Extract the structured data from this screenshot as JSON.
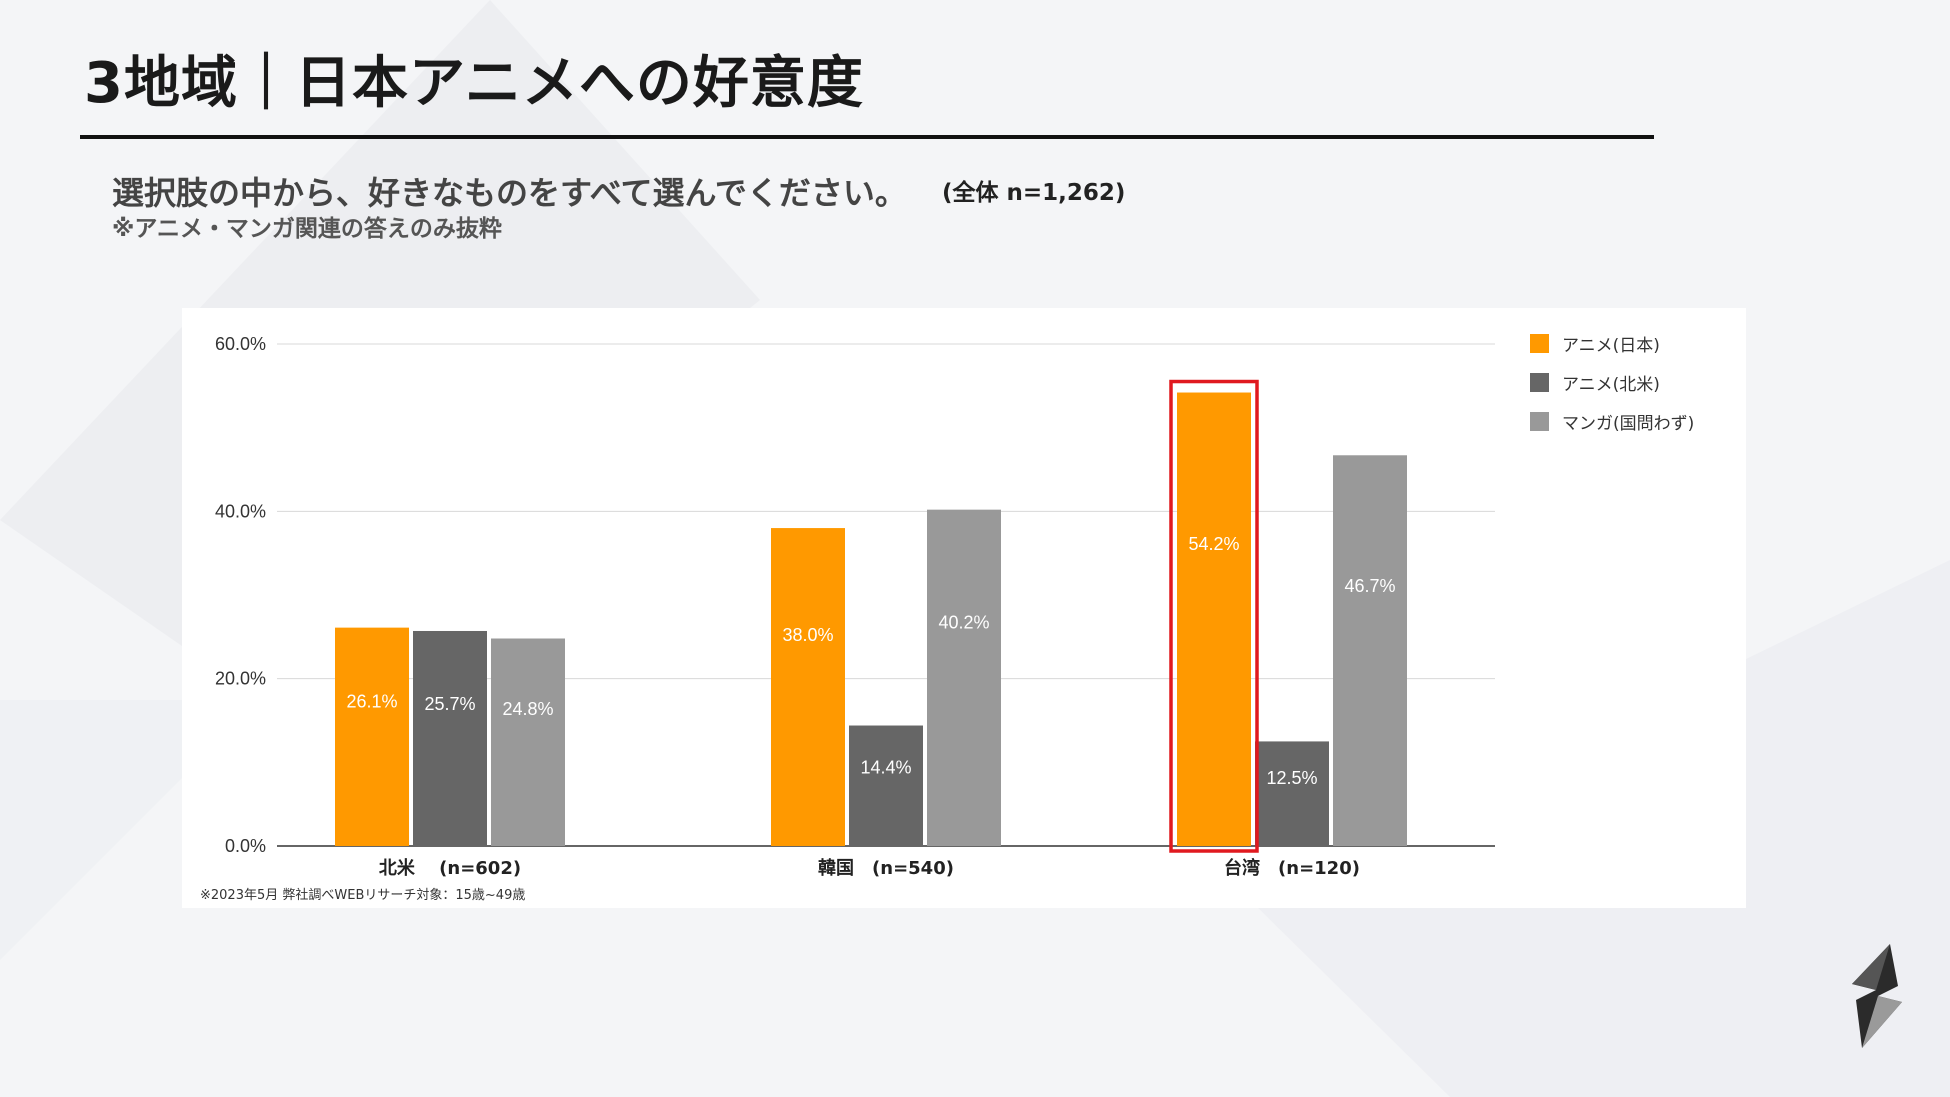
{
  "slide": {
    "title": "3地域｜日本アニメへの好意度",
    "question": "選択肢の中から、好きなものをすべて選んでください。",
    "sample_size": "(全体 n=1,262)",
    "note": "※アニメ・マンガ関連の答えのみ抜粋",
    "source": "※2023年5月 弊社調べWEBリサーチ対象：15歳~49歳"
  },
  "colors": {
    "anime_japan": "#ff9900",
    "anime_na": "#666666",
    "manga": "#999999",
    "highlight": "#e0191f"
  },
  "chart_data": {
    "type": "bar",
    "categories": [
      "北米　 (n=602)",
      "韓国　(n=540)",
      "台湾　(n=120)"
    ],
    "series": [
      {
        "name": "アニメ(日本)",
        "values": [
          26.1,
          38.0,
          54.2
        ],
        "labels": [
          "26.1%",
          "38.0%",
          "54.2%"
        ],
        "color": "#ff9900"
      },
      {
        "name": "アニメ(北米)",
        "values": [
          25.7,
          14.4,
          12.5
        ],
        "labels": [
          "25.7%",
          "14.4%",
          "12.5%"
        ],
        "color": "#666666"
      },
      {
        "name": "マンガ(国問わず)",
        "values": [
          24.8,
          40.2,
          46.7
        ],
        "labels": [
          "24.8%",
          "40.2%",
          "46.7%"
        ],
        "color": "#999999"
      }
    ],
    "yticks": [
      "0.0%",
      "20.0%",
      "40.0%",
      "60.0%"
    ],
    "ylim": [
      0,
      60
    ],
    "grid": true,
    "legend_position": "right",
    "highlight": {
      "category": "台湾　(n=120)",
      "series": "アニメ(日本)"
    }
  },
  "logo": {
    "icon": "s-bolt-logo-icon"
  }
}
